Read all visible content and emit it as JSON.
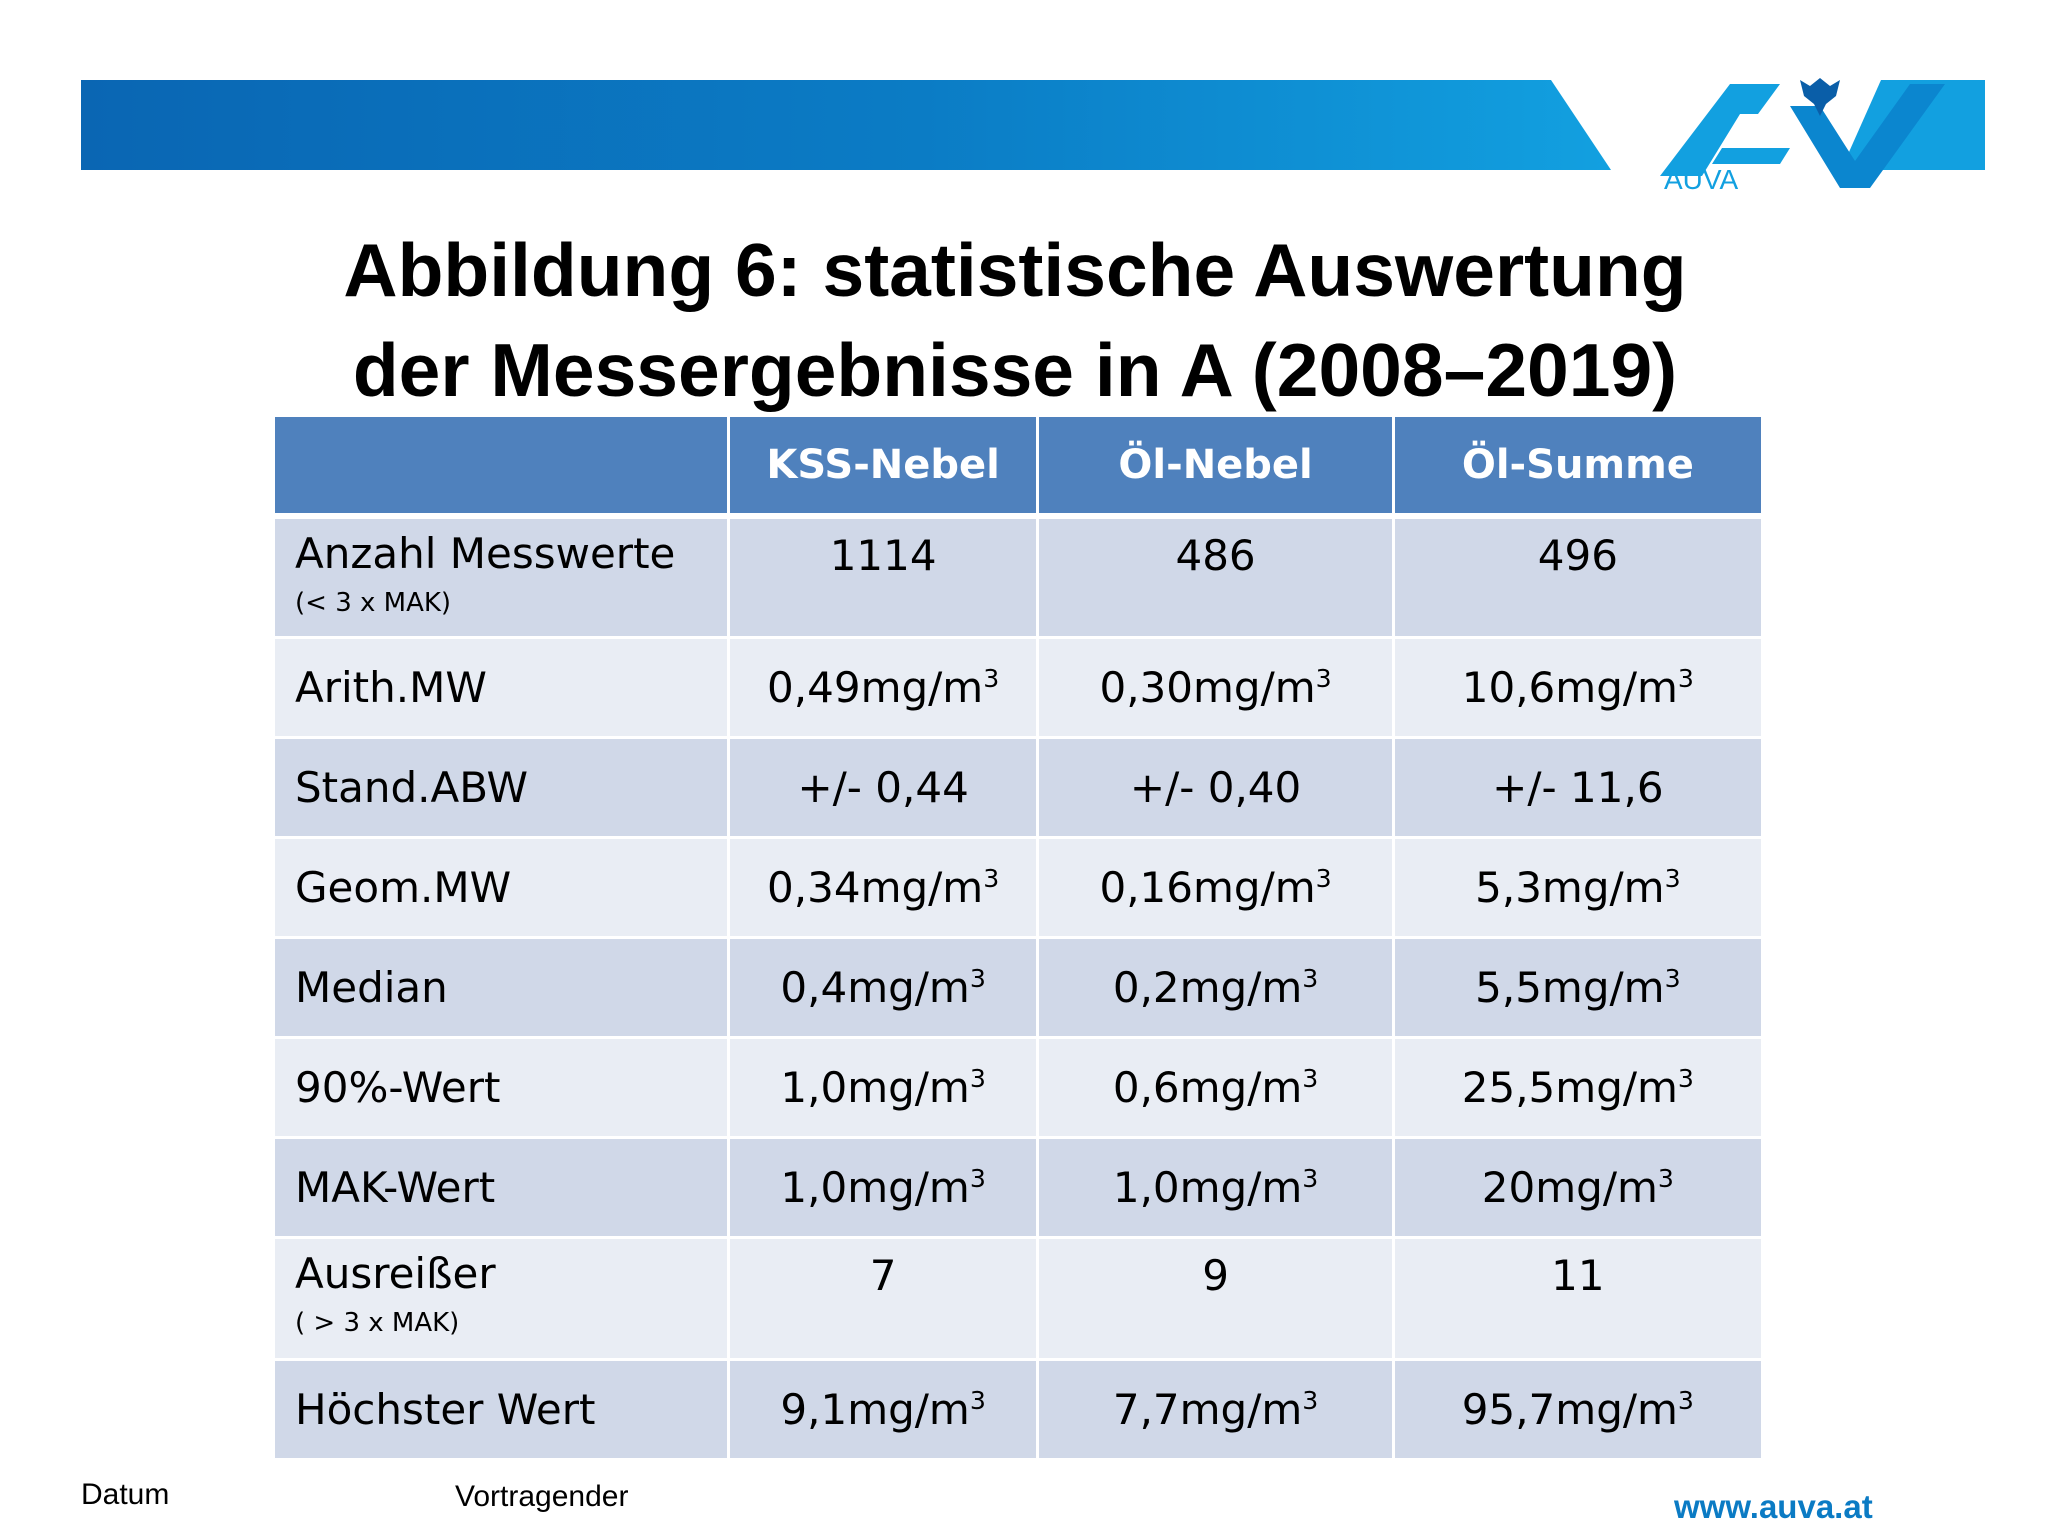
{
  "header": {
    "brand_color": "#0070c0",
    "logo_text": "AUVA"
  },
  "title": {
    "line1": "Abbildung 6: statistische Auswertung",
    "line2": "der Messergebnisse in A (2008–2019)"
  },
  "table": {
    "header_color": "#4f81bd",
    "columns": [
      "",
      "KSS-Nebel",
      "Öl-Nebel",
      "Öl-Summe"
    ],
    "rows": [
      {
        "label": "Anzahl Messwerte",
        "sublabel": "(< 3 x MAK)",
        "values": [
          "1114",
          "486",
          "496"
        ]
      },
      {
        "label": "Arith.MW",
        "values": [
          "0,49mg/m",
          "0,30mg/m",
          "10,6mg/m"
        ],
        "unit_sup": "3"
      },
      {
        "label": "Stand.ABW",
        "values": [
          "+/- 0,44",
          "+/- 0,40",
          "+/- 11,6"
        ]
      },
      {
        "label": "Geom.MW",
        "values": [
          "0,34mg/m",
          "0,16mg/m",
          "5,3mg/m"
        ],
        "unit_sup": "3"
      },
      {
        "label": "Median",
        "values": [
          "0,4mg/m",
          "0,2mg/m",
          "5,5mg/m"
        ],
        "unit_sup": "3"
      },
      {
        "label": "90%-Wert",
        "values": [
          "1,0mg/m",
          "0,6mg/m",
          "25,5mg/m"
        ],
        "unit_sup": "3"
      },
      {
        "label": "MAK-Wert",
        "values": [
          "1,0mg/m",
          "1,0mg/m",
          "20mg/m"
        ],
        "unit_sup": "3"
      },
      {
        "label": "Ausreißer",
        "sublabel": "( > 3 x MAK)",
        "values": [
          "7",
          "9",
          "11"
        ]
      },
      {
        "label": "Höchster Wert",
        "values": [
          "9,1mg/m",
          "7,7mg/m",
          "95,7mg/m"
        ],
        "unit_sup": "3"
      }
    ]
  },
  "footer": {
    "date_label": "Datum",
    "speaker_label": "Vortragender",
    "url": "www.auva.at",
    "url_color": "#0b7bc4"
  }
}
